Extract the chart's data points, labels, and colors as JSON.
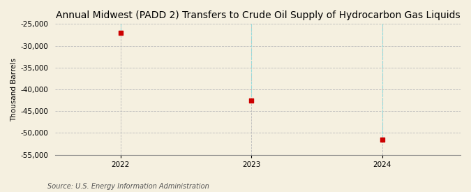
{
  "title": "Annual Midwest (PADD 2) Transfers to Crude Oil Supply of Hydrocarbon Gas Liquids",
  "ylabel": "Thousand Barrels",
  "source": "Source: U.S. Energy Information Administration",
  "x_values": [
    2022,
    2023,
    2024
  ],
  "y_values": [
    -27000,
    -42500,
    -51500
  ],
  "ylim": [
    -55000,
    -25000
  ],
  "yticks": [
    -25000,
    -30000,
    -35000,
    -40000,
    -45000,
    -50000,
    -55000
  ],
  "xlim": [
    2021.5,
    2024.6
  ],
  "xticks": [
    2022,
    2023,
    2024
  ],
  "marker_color": "#cc0000",
  "marker_size": 5,
  "grid_color": "#bbbbbb",
  "vline_color": "#99dddd",
  "background_color": "#f5f0e0",
  "title_fontsize": 10,
  "label_fontsize": 7.5,
  "tick_fontsize": 7.5,
  "source_fontsize": 7
}
